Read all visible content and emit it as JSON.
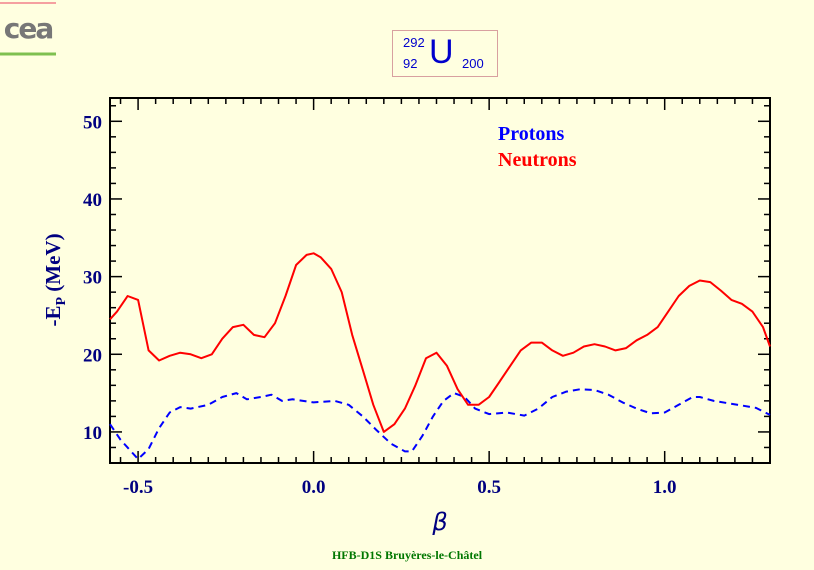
{
  "logo": {
    "text": "cea"
  },
  "nucleus": {
    "mass_number": "292",
    "atomic_number": "92",
    "symbol": "U",
    "neutron_number": "200"
  },
  "colors": {
    "background": "#FFFFE0",
    "axis": "#000080",
    "protons": "#0000ff",
    "neutrons": "#ff0000",
    "credit": "#007700"
  },
  "chart_data": {
    "type": "line",
    "title": "",
    "xlabel": "β",
    "ylabel": "-E_P (MeV)",
    "xlim": [
      -0.58,
      1.3
    ],
    "ylim": [
      6,
      53
    ],
    "x_ticks": [
      "-0.5",
      "0.0",
      "0.5",
      "1.0"
    ],
    "y_ticks": [
      "10",
      "20",
      "30",
      "40",
      "50"
    ],
    "legend": {
      "placement": "top-right",
      "entries": [
        "Protons",
        "Neutrons"
      ]
    },
    "series": [
      {
        "name": "Protons",
        "style": "dashed",
        "color": "#0000ff",
        "x": [
          -0.58,
          -0.55,
          -0.52,
          -0.5,
          -0.47,
          -0.44,
          -0.41,
          -0.38,
          -0.35,
          -0.3,
          -0.26,
          -0.22,
          -0.19,
          -0.15,
          -0.12,
          -0.09,
          -0.06,
          0.0,
          0.06,
          0.1,
          0.14,
          0.18,
          0.22,
          0.26,
          0.28,
          0.31,
          0.34,
          0.37,
          0.4,
          0.43,
          0.46,
          0.5,
          0.55,
          0.6,
          0.64,
          0.68,
          0.72,
          0.76,
          0.8,
          0.84,
          0.88,
          0.92,
          0.96,
          1.0,
          1.04,
          1.08,
          1.1,
          1.14,
          1.18,
          1.22,
          1.26,
          1.3
        ],
        "y": [
          11.0,
          9.0,
          7.5,
          6.5,
          7.8,
          10.5,
          12.5,
          13.2,
          13.0,
          13.5,
          14.5,
          15.0,
          14.2,
          14.5,
          14.8,
          14.0,
          14.2,
          13.8,
          14.0,
          13.5,
          12.0,
          10.2,
          8.5,
          7.5,
          7.5,
          9.5,
          12.0,
          14.0,
          15.0,
          14.5,
          13.0,
          12.3,
          12.5,
          12.1,
          13.0,
          14.5,
          15.2,
          15.5,
          15.4,
          14.8,
          13.8,
          13.0,
          12.4,
          12.5,
          13.5,
          14.5,
          14.5,
          14.0,
          13.7,
          13.4,
          13.1,
          12.2
        ]
      },
      {
        "name": "Neutrons",
        "style": "solid",
        "color": "#ff0000",
        "x": [
          -0.58,
          -0.56,
          -0.53,
          -0.5,
          -0.47,
          -0.44,
          -0.41,
          -0.38,
          -0.35,
          -0.32,
          -0.29,
          -0.26,
          -0.23,
          -0.2,
          -0.17,
          -0.14,
          -0.11,
          -0.08,
          -0.05,
          -0.02,
          0.0,
          0.02,
          0.05,
          0.08,
          0.11,
          0.14,
          0.17,
          0.2,
          0.23,
          0.26,
          0.29,
          0.32,
          0.35,
          0.38,
          0.41,
          0.44,
          0.47,
          0.5,
          0.53,
          0.56,
          0.59,
          0.62,
          0.65,
          0.68,
          0.71,
          0.74,
          0.77,
          0.8,
          0.83,
          0.86,
          0.89,
          0.92,
          0.95,
          0.98,
          1.01,
          1.04,
          1.07,
          1.1,
          1.13,
          1.16,
          1.19,
          1.22,
          1.25,
          1.28,
          1.3
        ],
        "y": [
          24.5,
          25.5,
          27.5,
          27.0,
          20.5,
          19.2,
          19.8,
          20.2,
          20.0,
          19.5,
          20.0,
          22.0,
          23.5,
          23.8,
          22.5,
          22.2,
          24.0,
          27.5,
          31.5,
          32.8,
          33.0,
          32.5,
          31.0,
          28.0,
          22.5,
          18.0,
          13.5,
          10.0,
          11.0,
          13.0,
          16.0,
          19.5,
          20.2,
          18.5,
          15.5,
          13.5,
          13.5,
          14.5,
          16.5,
          18.5,
          20.5,
          21.5,
          21.5,
          20.5,
          19.8,
          20.2,
          21.0,
          21.3,
          21.0,
          20.5,
          20.8,
          21.8,
          22.5,
          23.5,
          25.5,
          27.5,
          28.8,
          29.5,
          29.3,
          28.2,
          27.0,
          26.5,
          25.5,
          23.5,
          21.0
        ]
      }
    ]
  },
  "credit": "HFB-D1S Bruyères-le-Châtel"
}
